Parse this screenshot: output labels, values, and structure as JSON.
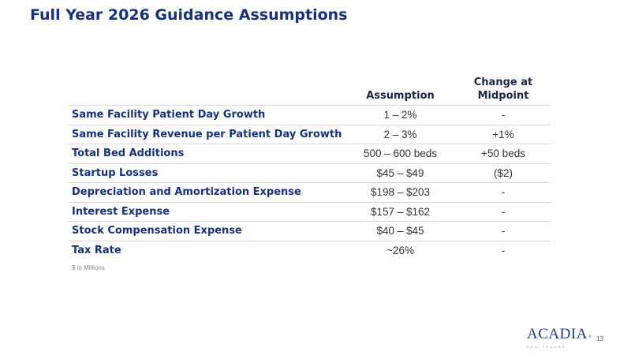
{
  "slide": {
    "title": "Full Year 2026 Guidance Assumptions",
    "page_number": "13",
    "footnote": "$ in Millions"
  },
  "table": {
    "headers": {
      "metric": "",
      "assumption": "Assumption",
      "change_line1": "Change at",
      "change_line2": "Midpoint"
    },
    "rows": [
      {
        "metric": "Same Facility Patient Day Growth",
        "assumption": "1 – 2%",
        "change": "-"
      },
      {
        "metric": "Same Facility Revenue per Patient Day Growth",
        "assumption": "2 – 3%",
        "change": "+1%"
      },
      {
        "metric": "Total Bed Additions",
        "assumption": "500 – 600 beds",
        "change": "+50 beds"
      },
      {
        "metric": "Startup Losses",
        "assumption": "$45 – $49",
        "change": "($2)"
      },
      {
        "metric": "Depreciation and Amortization Expense",
        "assumption": "$198 – $203",
        "change": "-"
      },
      {
        "metric": "Interest Expense",
        "assumption": "$157 – $162",
        "change": "-"
      },
      {
        "metric": "Stock Compensation Expense",
        "assumption": "$40 – $45",
        "change": "-"
      },
      {
        "metric": "Tax Rate",
        "assumption": "~26%",
        "change": "-"
      }
    ]
  },
  "logo": {
    "name": "ACADIA",
    "registered": "®",
    "subtitle": "HEALTHCARE"
  },
  "colors": {
    "title": "#17327a",
    "metric_text": "#17327a",
    "value_text": "#333333",
    "divider": "#d6d6d6"
  }
}
